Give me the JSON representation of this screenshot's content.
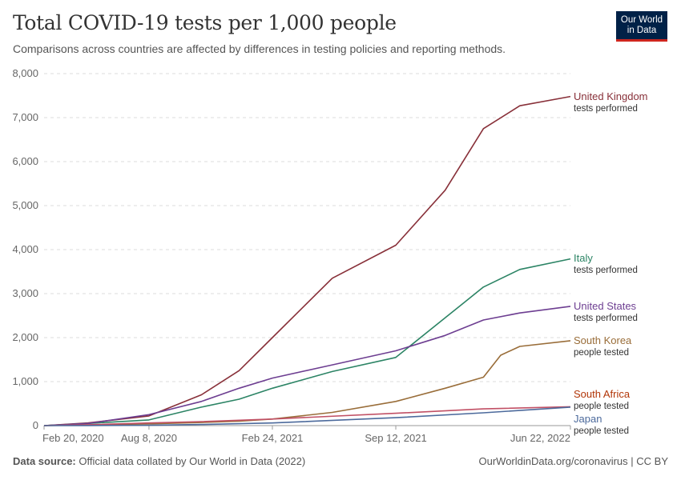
{
  "header": {
    "title": "Total COVID-19 tests per 1,000 people",
    "subtitle": "Comparisons across countries are affected by differences in testing policies and reporting methods.",
    "logo_line1": "Our World",
    "logo_line2": "in Data"
  },
  "footer": {
    "source_label": "Data source:",
    "source_text": "Official data collated by Our World in Data (2022)",
    "right_text": "OurWorldinData.org/coronavirus | CC BY"
  },
  "chart_data": {
    "type": "line",
    "title": "Total COVID-19 tests per 1,000 people",
    "xlabel": "",
    "ylabel": "",
    "x_domain": [
      "2020-02-20",
      "2022-06-22"
    ],
    "ylim": [
      0,
      8000
    ],
    "y_ticks": [
      0,
      1000,
      2000,
      3000,
      4000,
      5000,
      6000,
      7000,
      8000
    ],
    "y_tick_labels": [
      "0",
      "1,000",
      "2,000",
      "3,000",
      "4,000",
      "5,000",
      "6,000",
      "7,000",
      "8,000"
    ],
    "x_ticks": [
      "2020-02-20",
      "2020-08-08",
      "2021-02-24",
      "2021-09-12",
      "2022-06-22"
    ],
    "x_tick_labels": [
      "Feb 20, 2020",
      "Aug 8, 2020",
      "Feb 24, 2021",
      "Sep 12, 2021",
      "Jun 22, 2022"
    ],
    "grid": "horizontal dashed",
    "legend": "inline labels at line ends (right)",
    "series": [
      {
        "name": "United Kingdom",
        "note": "tests performed",
        "color": "#883039",
        "x": [
          "2020-02-20",
          "2020-05-01",
          "2020-08-08",
          "2020-11-01",
          "2021-01-01",
          "2021-02-24",
          "2021-06-01",
          "2021-09-12",
          "2021-12-01",
          "2022-02-01",
          "2022-04-01",
          "2022-06-22"
        ],
        "y": [
          0,
          60,
          220,
          700,
          1250,
          2000,
          3350,
          4100,
          5350,
          6750,
          7270,
          7480
        ]
      },
      {
        "name": "Italy",
        "note": "tests performed",
        "color": "#2c8465",
        "x": [
          "2020-02-20",
          "2020-05-01",
          "2020-08-08",
          "2020-11-01",
          "2021-01-01",
          "2021-02-24",
          "2021-06-01",
          "2021-09-12",
          "2021-12-01",
          "2022-02-01",
          "2022-04-01",
          "2022-06-22"
        ],
        "y": [
          0,
          50,
          130,
          420,
          600,
          850,
          1230,
          1550,
          2450,
          3150,
          3550,
          3790
        ]
      },
      {
        "name": "United States",
        "note": "tests performed",
        "color": "#6d3e91",
        "x": [
          "2020-02-20",
          "2020-05-01",
          "2020-08-08",
          "2020-11-01",
          "2021-01-01",
          "2021-02-24",
          "2021-06-01",
          "2021-09-12",
          "2021-12-01",
          "2022-02-01",
          "2022-04-01",
          "2022-06-22"
        ],
        "y": [
          0,
          50,
          250,
          550,
          850,
          1080,
          1380,
          1700,
          2050,
          2400,
          2560,
          2710
        ]
      },
      {
        "name": "South Korea",
        "note": "people tested",
        "color": "#996d39",
        "x": [
          "2020-02-20",
          "2020-05-01",
          "2020-08-08",
          "2020-11-01",
          "2021-01-01",
          "2021-02-24",
          "2021-06-01",
          "2021-09-12",
          "2021-12-01",
          "2022-02-01",
          "2022-03-01",
          "2022-04-01",
          "2022-06-22"
        ],
        "y": [
          0,
          15,
          40,
          70,
          100,
          150,
          300,
          550,
          850,
          1100,
          1600,
          1800,
          1930
        ]
      },
      {
        "name": "South Africa",
        "note": "people tested",
        "color": "#c15065",
        "x": [
          "2020-02-20",
          "2020-05-01",
          "2020-08-08",
          "2020-11-01",
          "2021-02-24",
          "2021-09-12",
          "2022-02-01",
          "2022-06-22"
        ],
        "y": [
          0,
          20,
          60,
          90,
          150,
          280,
          380,
          430
        ]
      },
      {
        "name": "Japan",
        "note": "people tested",
        "color": "#4c6a9c",
        "x": [
          "2020-02-20",
          "2020-05-01",
          "2020-08-08",
          "2020-11-01",
          "2021-02-24",
          "2021-09-12",
          "2022-02-01",
          "2022-06-22"
        ],
        "y": [
          0,
          2,
          8,
          25,
          60,
          180,
          290,
          420
        ]
      }
    ],
    "label_colors": {
      "South Africa": "#b13507"
    }
  }
}
